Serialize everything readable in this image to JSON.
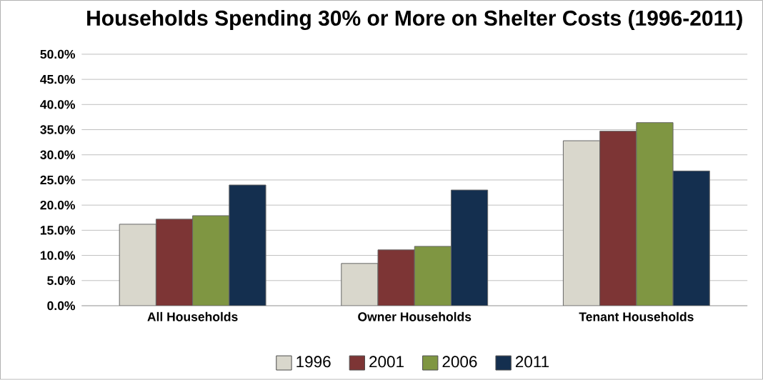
{
  "chart_data": {
    "type": "bar",
    "title": "Households Spending 30% or More on Shelter Costs (1996-2011)",
    "categories": [
      "All Households",
      "Owner Households",
      "Tenant Households"
    ],
    "series": [
      {
        "name": "1996",
        "color": "#d9d7cc",
        "values": [
          16.2,
          8.4,
          32.8
        ]
      },
      {
        "name": "2001",
        "color": "#7d3535",
        "values": [
          17.2,
          11.1,
          34.7
        ]
      },
      {
        "name": "2006",
        "color": "#7f9642",
        "values": [
          17.9,
          11.8,
          36.4
        ]
      },
      {
        "name": "2011",
        "color": "#142f4f",
        "values": [
          24.0,
          23.0,
          26.8
        ]
      }
    ],
    "ylim": [
      0,
      50
    ],
    "yticks": [
      {
        "value": 0,
        "label": "0.0%"
      },
      {
        "value": 5,
        "label": "5.0%"
      },
      {
        "value": 10,
        "label": "10.0%"
      },
      {
        "value": 15,
        "label": "15.0%"
      },
      {
        "value": 20,
        "label": "20.0%"
      },
      {
        "value": 25,
        "label": "25.0%"
      },
      {
        "value": 30,
        "label": "30.0%"
      },
      {
        "value": 35,
        "label": "35.0%"
      },
      {
        "value": 40,
        "label": "40.0%"
      },
      {
        "value": 45,
        "label": "45.0%"
      },
      {
        "value": 50,
        "label": "50.0%"
      }
    ],
    "grid": "y",
    "legend": "bottom"
  }
}
